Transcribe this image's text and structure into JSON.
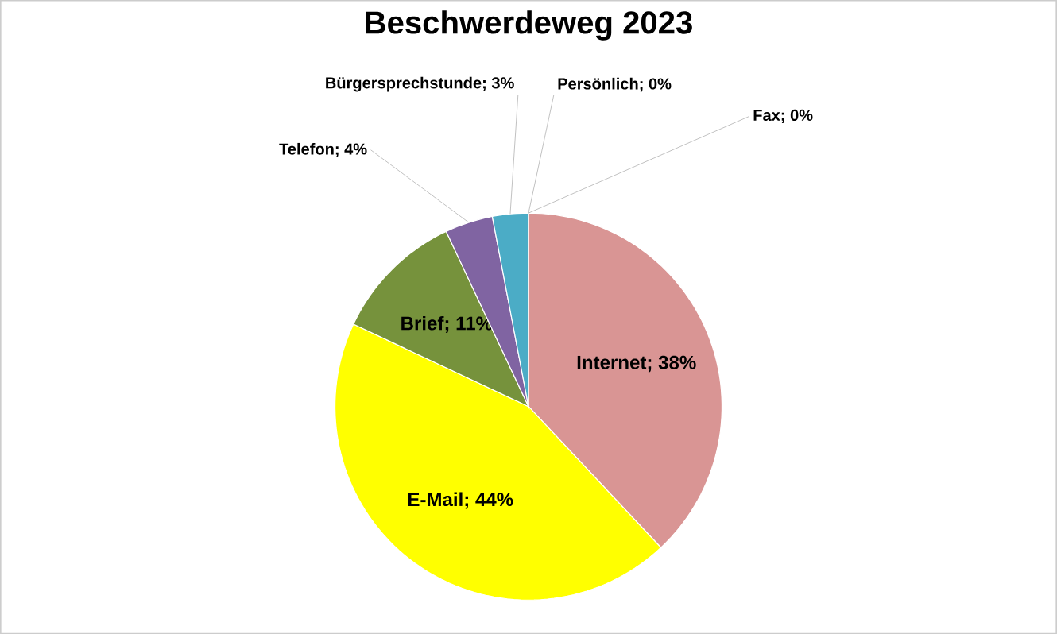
{
  "chart_data": {
    "type": "pie",
    "title": "Beschwerdeweg 2023",
    "categories": [
      "Internet",
      "E-Mail",
      "Brief",
      "Telefon",
      "Bürgersprechstunde",
      "Persönlich",
      "Fax"
    ],
    "values": [
      38,
      44,
      11,
      4,
      3,
      0,
      0
    ],
    "value_labels": [
      "; 38%",
      "; 44%",
      "; 11%",
      "; 4%",
      "; 3%",
      "; 0%",
      "; 0%"
    ],
    "colors": [
      "#d99594",
      "#ffff00",
      "#76923c",
      "#8064a2",
      "#4bacc6",
      "#f79646",
      "#c0504d"
    ]
  }
}
